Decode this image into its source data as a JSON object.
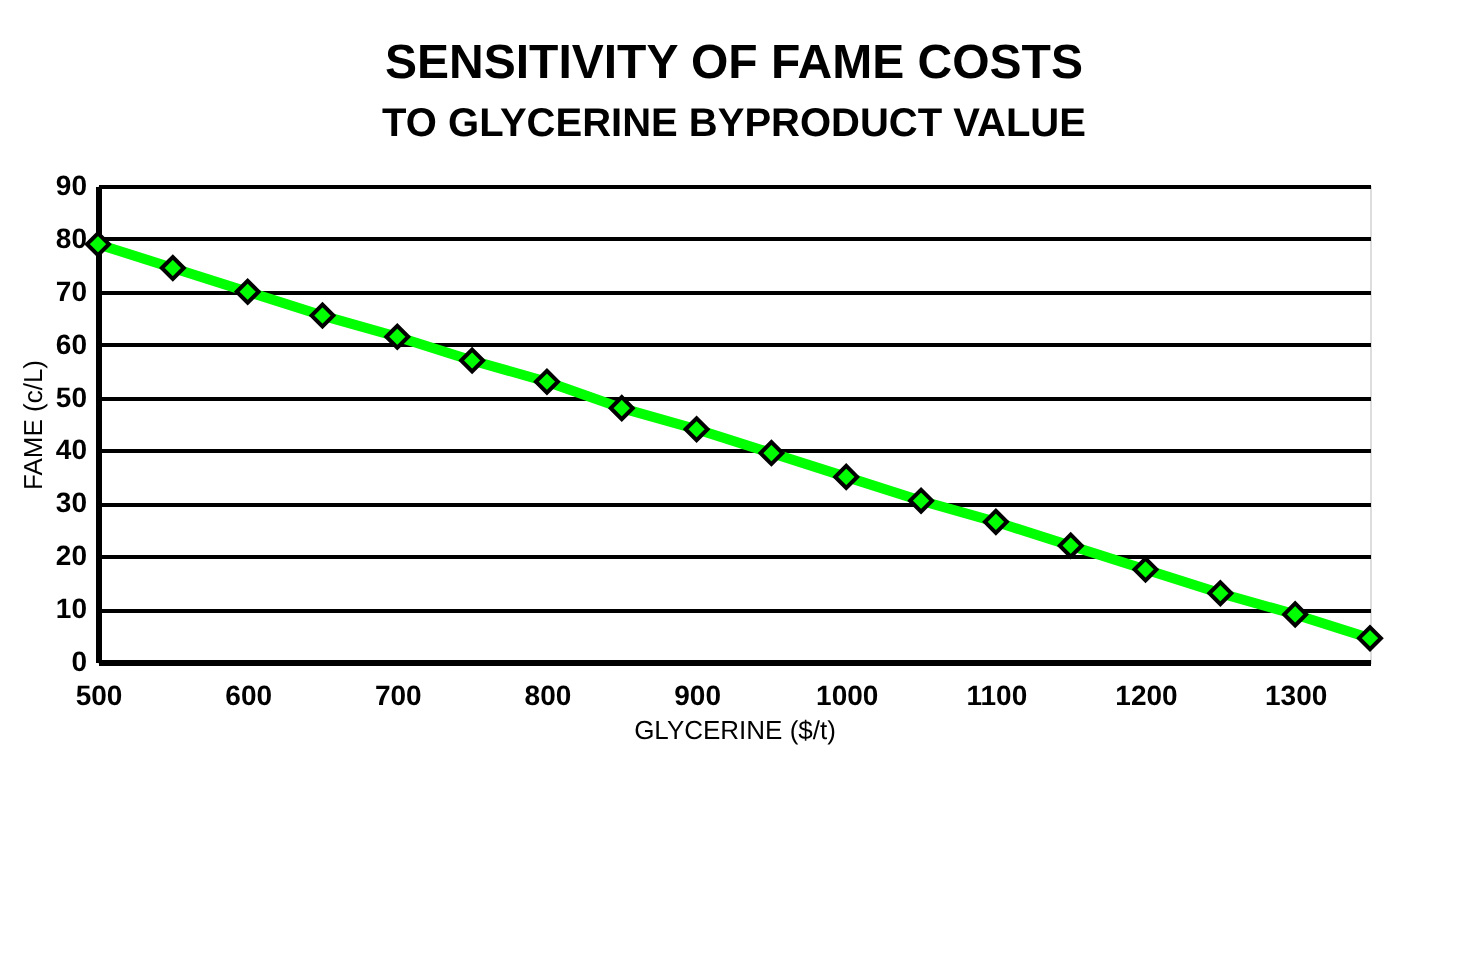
{
  "chart_data": {
    "type": "line",
    "title": "SENSITIVITY OF FAME COSTS",
    "subtitle": "TO GLYCERINE BYPRODUCT VALUE",
    "xlabel": "GLYCERINE ($/t)",
    "ylabel": "FAME (c/L)",
    "x": [
      500,
      550,
      600,
      650,
      700,
      750,
      800,
      850,
      900,
      950,
      1000,
      1050,
      1100,
      1150,
      1200,
      1250,
      1300,
      1350
    ],
    "series": [
      {
        "color": "#00ff00",
        "values": [
          79,
          74.5,
          70,
          65.5,
          61.5,
          57,
          53,
          48,
          44,
          39.5,
          35,
          30.5,
          26.5,
          22,
          17.5,
          13,
          9,
          4.5
        ]
      }
    ],
    "xlim": [
      500,
      1350
    ],
    "xticks": [
      500,
      600,
      700,
      800,
      900,
      1000,
      1100,
      1200,
      1300
    ],
    "ylim": [
      0,
      90
    ],
    "yticks": [
      0,
      10,
      20,
      30,
      40,
      50,
      60,
      70,
      80,
      90
    ],
    "grid": "y",
    "marker": "diamond",
    "line_style": "solid"
  }
}
